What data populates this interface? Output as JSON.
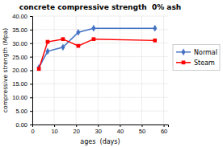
{
  "chart_data": {
    "type": "line",
    "title": "concrete compressive strength  0% ash",
    "xlabel": "ages  (days)",
    "ylabel": "compressive strength (Mpa)",
    "x": [
      3,
      7,
      14,
      21,
      28,
      56
    ],
    "series": [
      {
        "name": "Normal",
        "color": "#4472C4",
        "marker": "diamond",
        "values": [
          21.0,
          27.0,
          28.5,
          34.0,
          35.5,
          35.5
        ]
      },
      {
        "name": "Steam",
        "color": "#FF0000",
        "marker": "square",
        "values": [
          20.5,
          30.5,
          31.5,
          29.0,
          31.5,
          31.0
        ]
      }
    ],
    "xlim": [
      0,
      62
    ],
    "ylim": [
      0.0,
      40.0
    ],
    "xticks": [
      0,
      10,
      20,
      30,
      40,
      50,
      60
    ],
    "yticks": [
      {
        "value": 0.0,
        "label": "0.00"
      },
      {
        "value": 5.0,
        "label": "5.00"
      },
      {
        "value": 10.0,
        "label": "10.00"
      },
      {
        "value": 15.0,
        "label": "15.00"
      },
      {
        "value": 20.0,
        "label": "20.00"
      },
      {
        "value": 25.0,
        "label": "25.00"
      },
      {
        "value": 30.0,
        "label": "30.00"
      },
      {
        "value": 35.0,
        "label": "35.00"
      },
      {
        "value": 40.0,
        "label": "40.00"
      }
    ],
    "grid": true,
    "legend": "right"
  }
}
